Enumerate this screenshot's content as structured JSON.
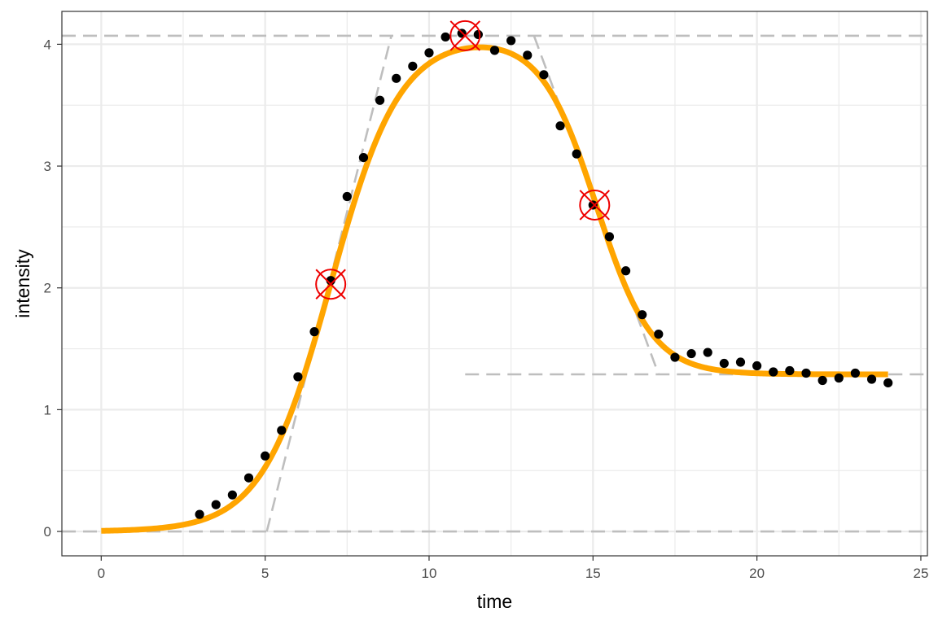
{
  "chart_data": {
    "type": "scatter",
    "title": "",
    "xlabel": "time",
    "ylabel": "intensity",
    "xlim": [
      -1.2,
      25.2
    ],
    "ylim": [
      -0.2,
      4.27
    ],
    "x_ticks": [
      0,
      5,
      10,
      15,
      20,
      25
    ],
    "y_ticks": [
      0,
      1,
      2,
      3,
      4
    ],
    "grid": true,
    "legend": "none",
    "colors": {
      "points": "#000000",
      "fit_curve": "#FFA500",
      "guide_lines": "#BEBEBE",
      "markers": "#EE0000",
      "grid": "#EBEBEB",
      "panel_border": "#333333"
    },
    "series": [
      {
        "type": "scatter",
        "x": [
          3.0,
          3.5,
          4.0,
          4.5,
          5.0,
          5.5,
          6.0,
          6.5,
          7.0,
          7.5,
          8.0,
          8.5,
          9.0,
          9.5,
          10.0,
          10.5,
          11.0,
          11.5,
          12.0,
          12.5,
          13.0,
          13.5,
          14.0,
          14.5,
          15.0,
          15.5,
          16.0,
          16.5,
          17.0,
          17.5,
          18.0,
          18.5,
          19.0,
          19.5,
          20.0,
          20.5,
          21.0,
          21.5,
          22.0,
          22.5,
          23.0,
          23.5,
          24.0
        ],
        "y": [
          0.14,
          0.22,
          0.3,
          0.44,
          0.62,
          0.83,
          1.27,
          1.64,
          2.06,
          2.75,
          3.07,
          3.54,
          3.72,
          3.82,
          3.93,
          4.06,
          4.09,
          4.08,
          3.95,
          4.03,
          3.91,
          3.75,
          3.33,
          3.1,
          2.68,
          2.42,
          2.14,
          1.78,
          1.62,
          1.43,
          1.46,
          1.47,
          1.38,
          1.39,
          1.36,
          1.31,
          1.32,
          1.3,
          1.24,
          1.26,
          1.3,
          1.25,
          1.22
        ]
      },
      {
        "type": "line",
        "style": "solid",
        "curve": "double_sigmoid",
        "x_range": [
          0,
          24
        ],
        "baseline": 0,
        "peak": 4.07,
        "end_level": 1.29,
        "rise_midpoint": 7.0,
        "rise_scale": 1.05,
        "fall_midpoint": 15.1,
        "fall_scale": 0.85
      },
      {
        "type": "line",
        "style": "dashed",
        "segments": [
          {
            "x": [
              -1.2,
              25.2
            ],
            "y": [
              0,
              0
            ]
          },
          {
            "x": [
              -1.2,
              25.2
            ],
            "y": [
              4.07,
              4.07
            ]
          },
          {
            "x": [
              11.1,
              25.2
            ],
            "y": [
              1.29,
              1.29
            ]
          },
          {
            "x": [
              5.05,
              8.85
            ],
            "y": [
              0,
              4.07
            ]
          },
          {
            "x": [
              13.2,
              17.0
            ],
            "y": [
              4.07,
              1.29
            ]
          }
        ]
      },
      {
        "type": "marker",
        "shape": "circled-cross",
        "x": [
          7.0,
          11.1,
          15.05
        ],
        "y": [
          2.03,
          4.07,
          2.68
        ]
      }
    ]
  }
}
